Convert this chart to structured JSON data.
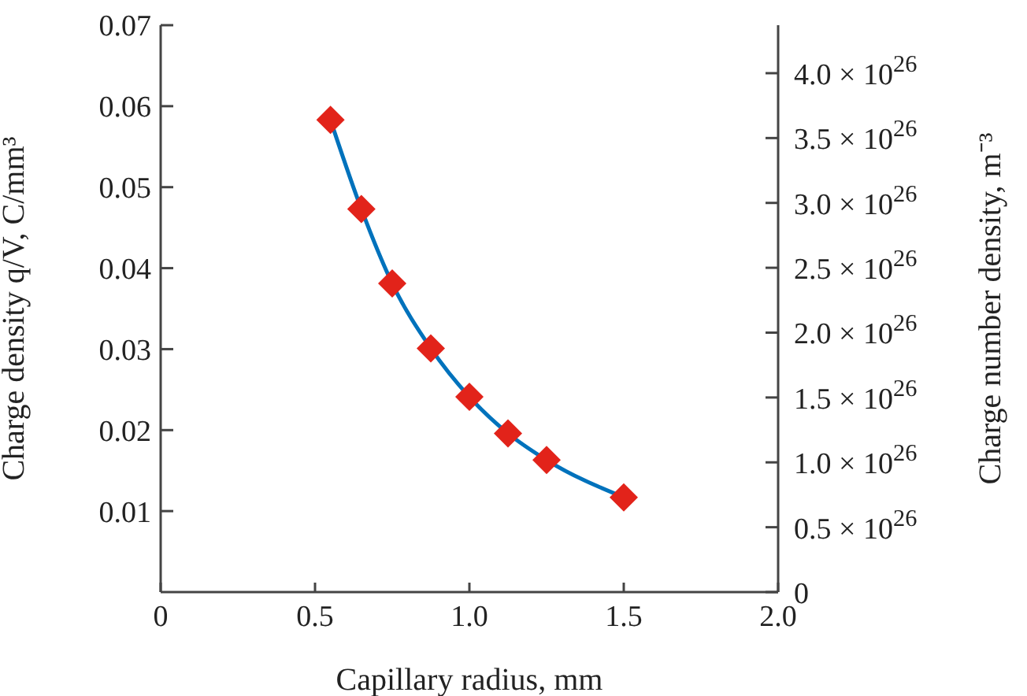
{
  "chart_data": {
    "type": "line",
    "xlabel": "Capillary radius, mm",
    "ylabel": "Charge density q/V, C/mm³",
    "y2label": "Charge number density, m⁻³",
    "x": [
      0.55,
      0.65,
      0.75,
      0.875,
      1.0,
      1.125,
      1.25,
      1.5
    ],
    "series": [
      {
        "type": "line",
        "color": "#0072bc",
        "colors": [
          "#e2231a",
          "#e2231a",
          "#e2231a",
          "#e2231a",
          "#e2231a",
          "#e2231a",
          "#e2231a",
          "#e2231a"
        ],
        "values": [
          0.0583,
          0.0473,
          0.0381,
          0.0301,
          0.0241,
          0.0196,
          0.0163,
          0.0117
        ]
      }
    ],
    "marker": "diamond",
    "line_style": "solid",
    "xlim": [
      0,
      2
    ],
    "xticks": [
      0,
      0.5,
      {
        "value": 1,
        "label": "1.0"
      },
      1.5,
      {
        "value": 2,
        "label": "2.0"
      }
    ],
    "ylim": [
      0,
      0.07
    ],
    "yticks": [
      0.01,
      {
        "value": 0.02,
        "label": "0.02"
      },
      0.03,
      0.04,
      0.05,
      0.06,
      0.07
    ],
    "y2lim": [
      0,
      4.37e+26
    ],
    "y2ticks": [
      {
        "value": 0,
        "label": "0"
      },
      {
        "value": 5e+25,
        "label": "0.5 × 10$^{26}$"
      },
      {
        "value": 1e+26,
        "label": "1.0 × 10$^{26}$"
      },
      {
        "value": 1.5e+26,
        "label": "1.5 × 10$^{26}$"
      },
      {
        "value": 2e+26,
        "label": "2.0 × 10$^{26}$"
      },
      {
        "value": 2.5e+26,
        "label": "2.5 × 10$^{26}$"
      },
      {
        "value": 3e+26,
        "label": "3.0 × 10$^{26}$"
      },
      {
        "value": 3.5e+26,
        "label": "3.5 × 10$^{26}$"
      },
      {
        "value": 4e+26,
        "label": "4.0 × 10$^{26}$"
      }
    ]
  }
}
